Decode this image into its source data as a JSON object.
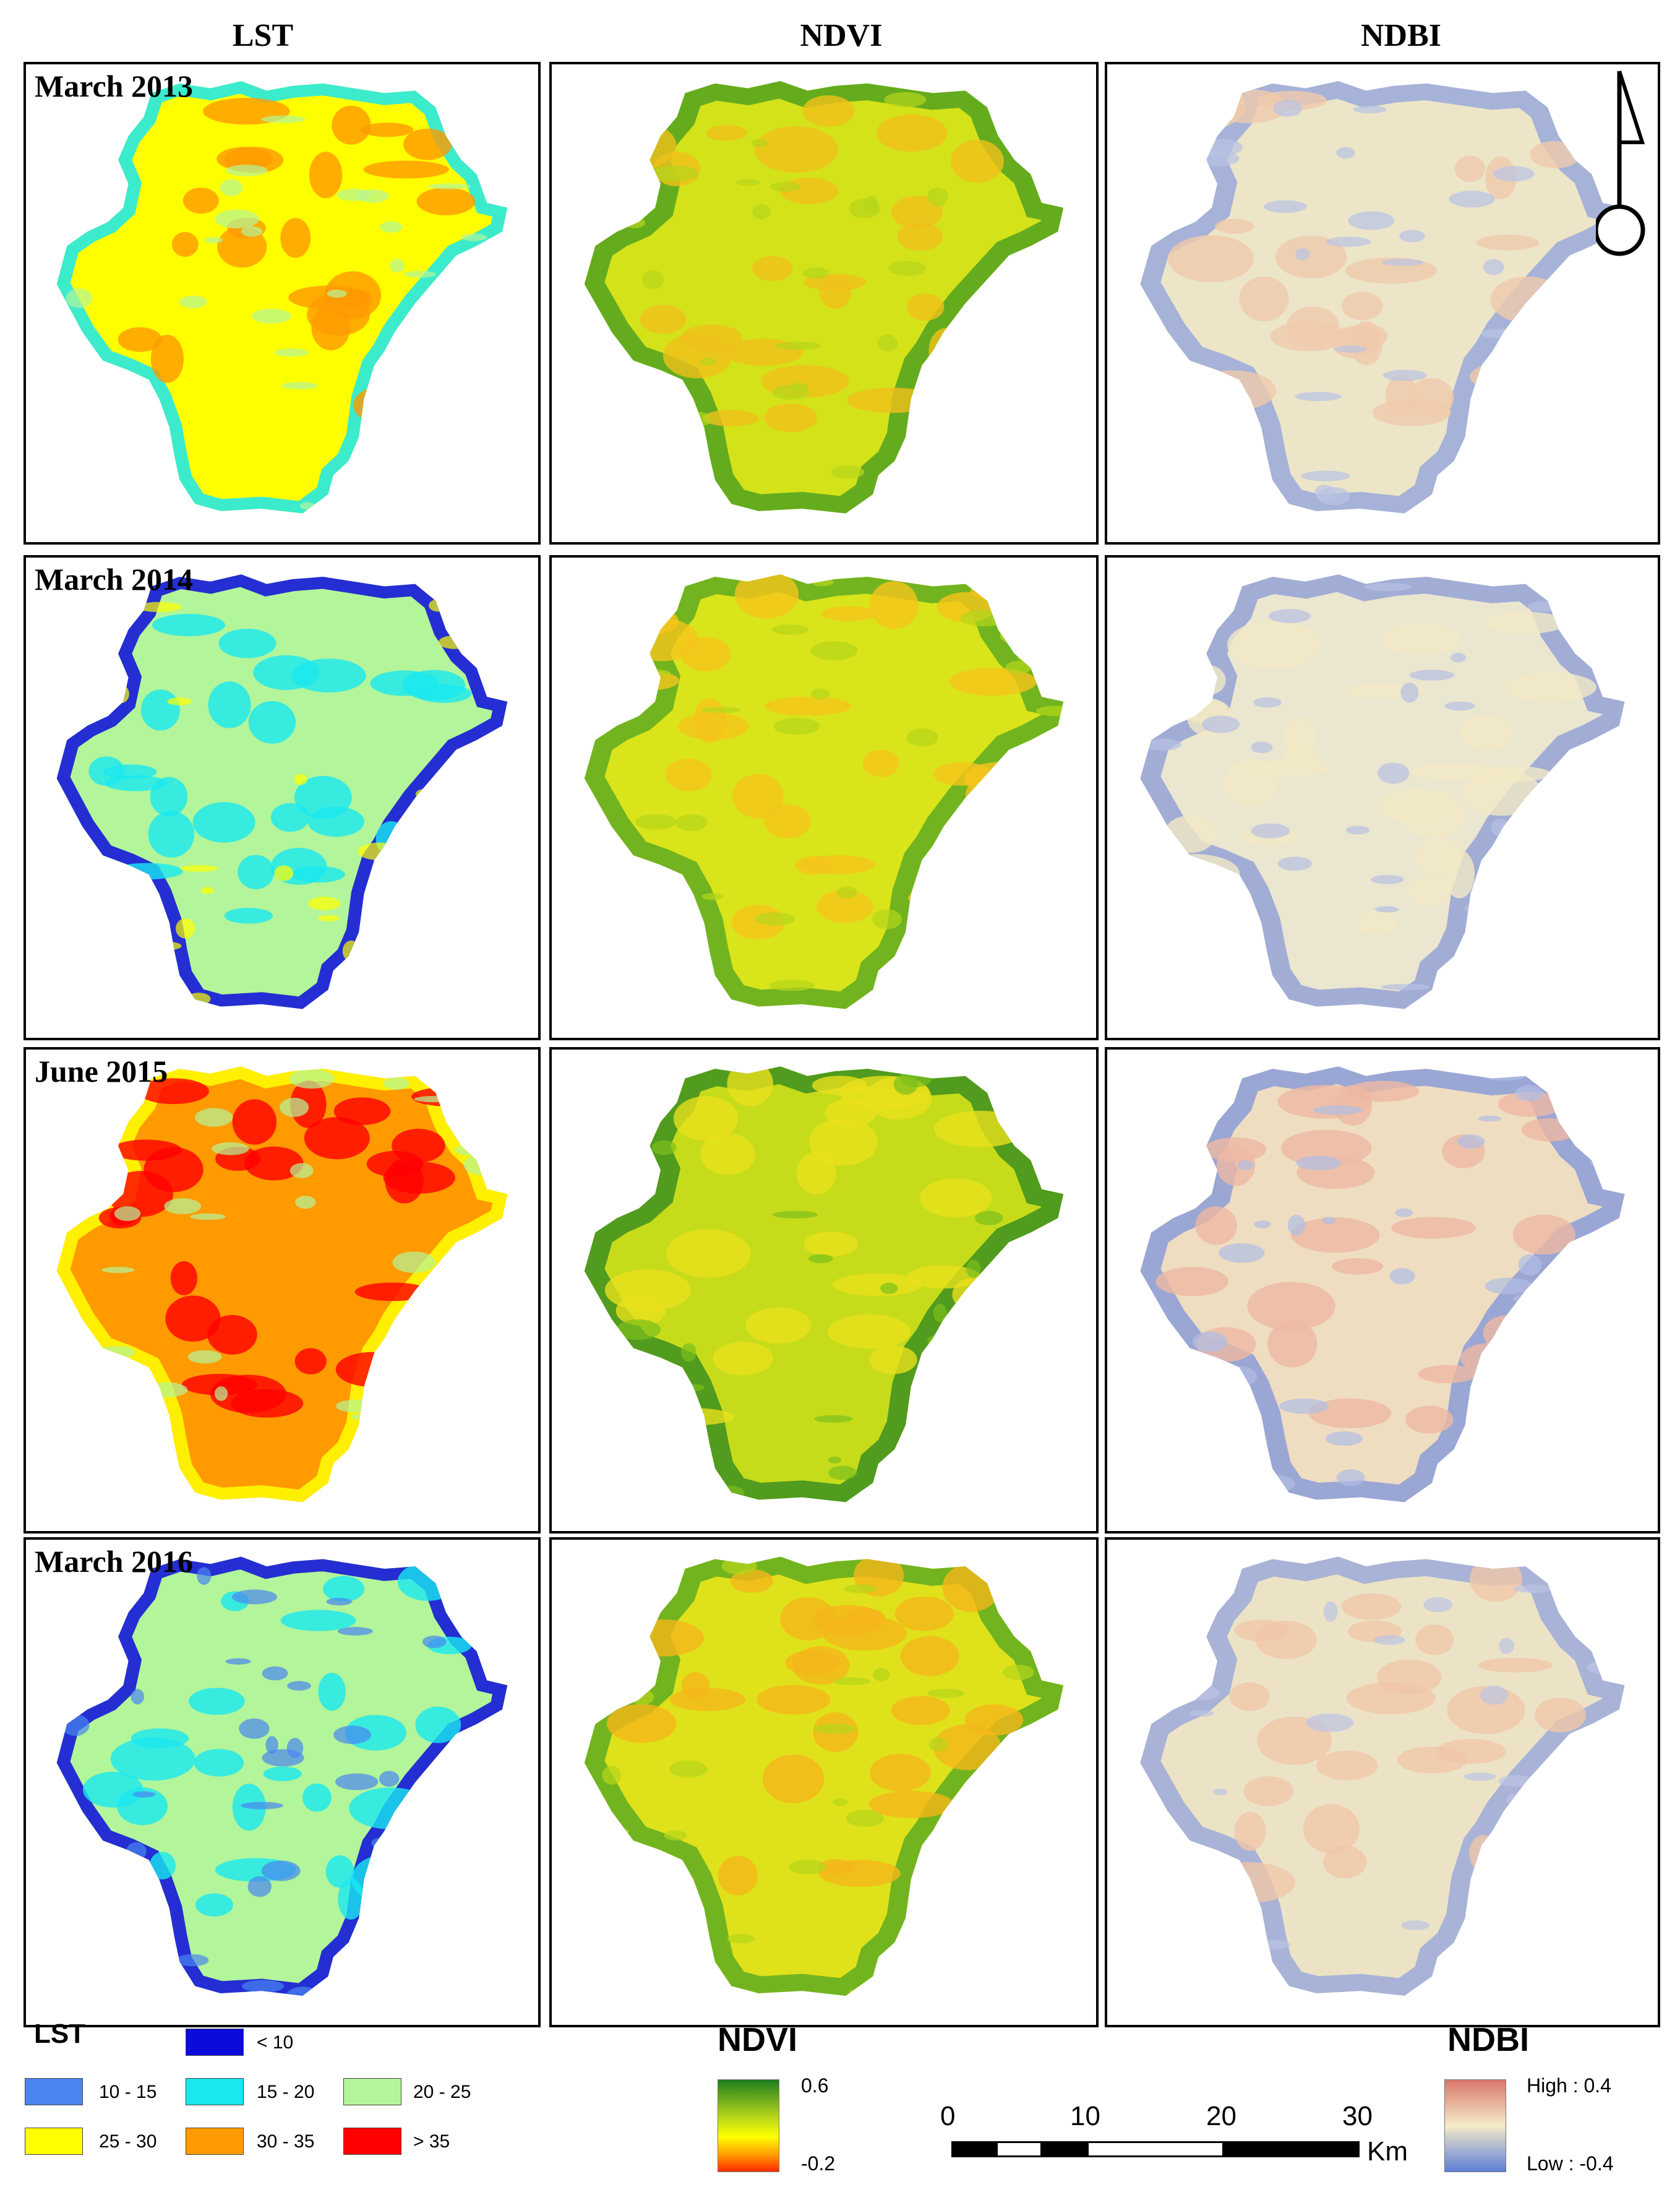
{
  "columns": [
    "LST",
    "NDVI",
    "NDBI"
  ],
  "rows": [
    "March 2013",
    "March 2014",
    "June 2015",
    "March 2016"
  ],
  "lst_legend": {
    "title": "LST",
    "classes": [
      {
        "label": "< 10",
        "color": "#0b0bdc"
      },
      {
        "label": "10 - 15",
        "color": "#4a86f0"
      },
      {
        "label": "15 - 20",
        "color": "#19e8f0"
      },
      {
        "label": "20 - 25",
        "color": "#b3f59a"
      },
      {
        "label": "25 - 30",
        "color": "#ffff00"
      },
      {
        "label": "30 - 35",
        "color": "#ff9a00"
      },
      {
        "label": "> 35",
        "color": "#ff0000"
      }
    ]
  },
  "ndvi_legend": {
    "title": "NDVI",
    "high": "0.6",
    "low": "-0.2",
    "colors": [
      "#1e7d1e",
      "#b5d51b",
      "#ffff00",
      "#ff9a00",
      "#ff2a00"
    ]
  },
  "ndbi_legend": {
    "title": "NDBI",
    "high": "High : 0.4",
    "low": "Low : -0.4",
    "colors": [
      "#d9776c",
      "#f4ebc8",
      "#5f7ed8"
    ]
  },
  "scale_bar": {
    "ticks": [
      "0",
      "10",
      "20",
      "30"
    ],
    "unit": "Km"
  },
  "north_arrow": {
    "icon": "north-arrow-icon"
  },
  "panel_fills": {
    "lst": [
      {
        "base": "#ffff00",
        "patch1": "#ff9a00",
        "patch2": "#19e8f0",
        "patch3": "#b3f59a"
      },
      {
        "base": "#b3f59a",
        "patch1": "#19e8f0",
        "patch2": "#0b0bdc",
        "patch3": "#ffff00"
      },
      {
        "base": "#ff9a00",
        "patch1": "#ff0000",
        "patch2": "#ffff00",
        "patch3": "#b3f59a"
      },
      {
        "base": "#b3f59a",
        "patch1": "#19e8f0",
        "patch2": "#0b0bdc",
        "patch3": "#4a86f0"
      }
    ],
    "ndvi": [
      {
        "base": "#d4e21a",
        "patch1": "#f0c01a",
        "patch2": "#3f9a20",
        "patch3": "#b5d51b"
      },
      {
        "base": "#d9e41a",
        "patch1": "#f6c41a",
        "patch2": "#4ea422",
        "patch3": "#b5d51b"
      },
      {
        "base": "#c6dc1a",
        "patch1": "#e9e01c",
        "patch2": "#2a8520",
        "patch3": "#7cbf1c"
      },
      {
        "base": "#dfe21a",
        "patch1": "#f5b61a",
        "patch2": "#4ea422",
        "patch3": "#b5d51b"
      }
    ],
    "ndbi": [
      {
        "base": "#ece5c8",
        "patch1": "#f0c9ad",
        "patch2": "#8fa0dc",
        "patch3": "#b9c3e4"
      },
      {
        "base": "#ebe6cf",
        "patch1": "#f2e9c4",
        "patch2": "#8a9ad8",
        "patch3": "#b6c0e2"
      },
      {
        "base": "#efddc2",
        "patch1": "#eeb9a2",
        "patch2": "#7d93d9",
        "patch3": "#b0bde4"
      },
      {
        "base": "#ece3c6",
        "patch1": "#f0c7a8",
        "patch2": "#93a3dc",
        "patch3": "#bcc5e4"
      }
    ]
  }
}
